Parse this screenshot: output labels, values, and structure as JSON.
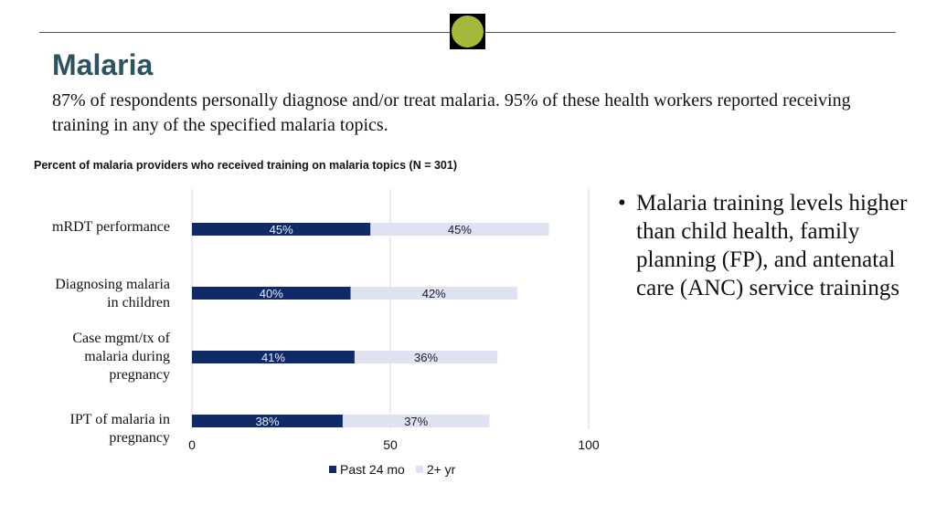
{
  "header": {
    "title": "Malaria",
    "subtitle": "87% of respondents personally diagnose and/or treat malaria. 95% of these health workers reported receiving training in any of the specified malaria topics.",
    "logo_color": "#a5b93c"
  },
  "bullets": [
    "Malaria training levels higher than child health, family planning (FP), and antenatal care (ANC) service trainings"
  ],
  "chart_data": {
    "type": "bar",
    "orientation": "horizontal",
    "stacked": true,
    "title": "Percent of malaria providers who received training on malaria topics (N = 301)",
    "categories": [
      [
        "mRDT performance"
      ],
      [
        "Diagnosing malaria",
        "in children"
      ],
      [
        "Case mgmt/tx of",
        "malaria during",
        "pregnancy"
      ],
      [
        "IPT of malaria in",
        "pregnancy"
      ]
    ],
    "series": [
      {
        "name": "Past 24 mo",
        "values": [
          45,
          40,
          41,
          38
        ],
        "labels": [
          "45%",
          "40%",
          "41%",
          "38%"
        ],
        "color": "#0f2a66",
        "label_color": "#e8ecf6"
      },
      {
        "name": "2+ yr",
        "values": [
          45,
          42,
          36,
          37
        ],
        "labels": [
          "45%",
          "42%",
          "36%",
          "37%"
        ],
        "color": "#dfe3f1",
        "label_color": "#1a1a2e"
      }
    ],
    "xlim": [
      0,
      100
    ],
    "xticks": [
      0,
      50,
      100
    ],
    "grid": true,
    "legend": "bottom"
  }
}
